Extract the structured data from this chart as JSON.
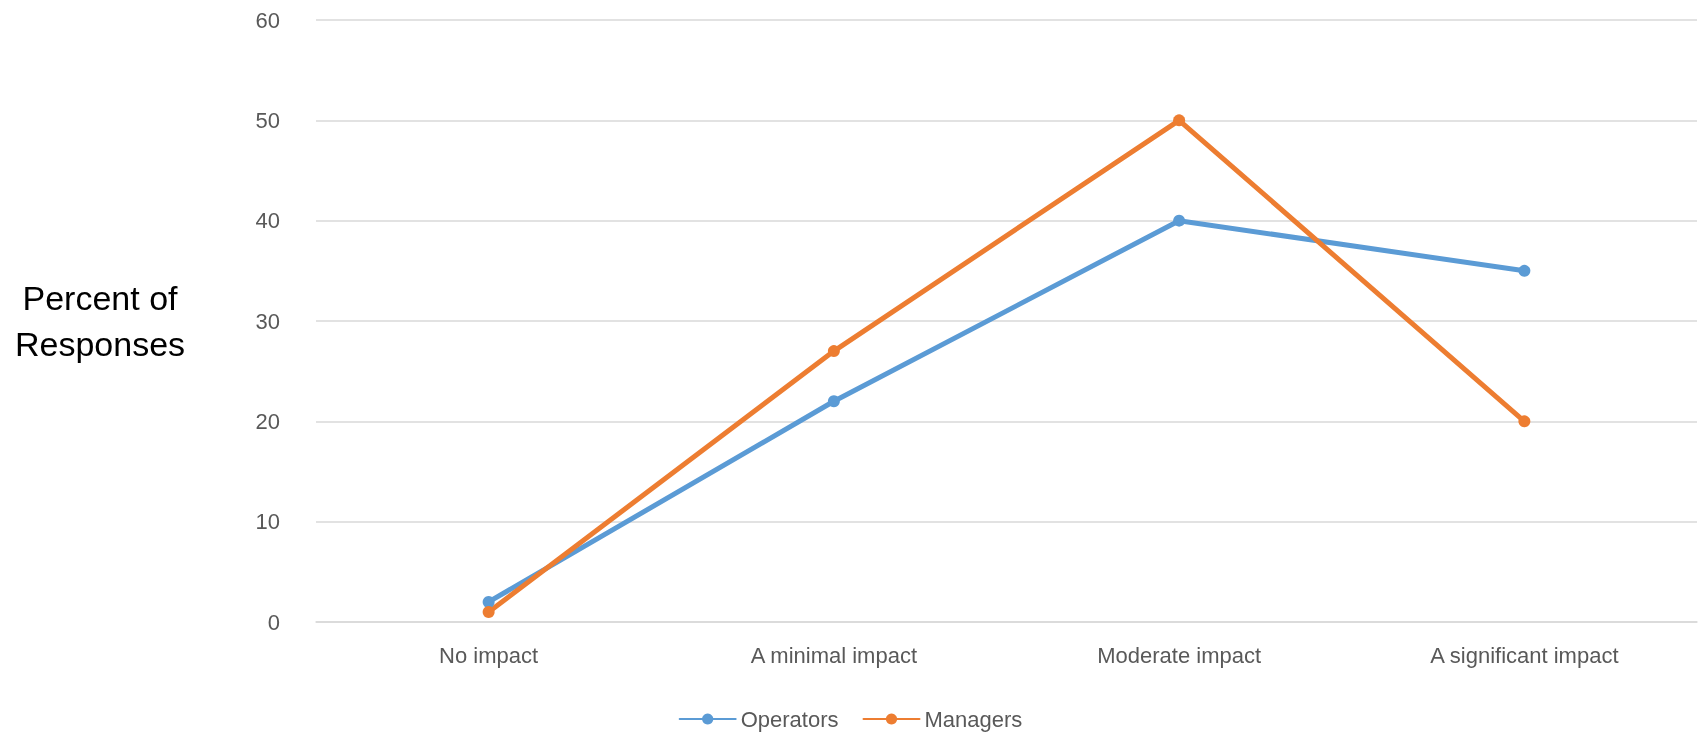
{
  "chart_data": {
    "type": "line",
    "ylabel": "Percent of\nResponses",
    "categories": [
      "No impact",
      "A minimal impact",
      "Moderate impact",
      "A significant impact"
    ],
    "series": [
      {
        "name": "Operators",
        "color": "#5b9bd5",
        "values": [
          2,
          22,
          40,
          35
        ]
      },
      {
        "name": "Managers",
        "color": "#ed7d31",
        "values": [
          1,
          27,
          50,
          20
        ]
      }
    ],
    "ylim": [
      0,
      60
    ],
    "yticks": [
      0,
      10,
      20,
      30,
      40,
      50,
      60
    ],
    "grid": "y",
    "legend": "bottom",
    "marker": "circle",
    "line_style": "solid"
  }
}
